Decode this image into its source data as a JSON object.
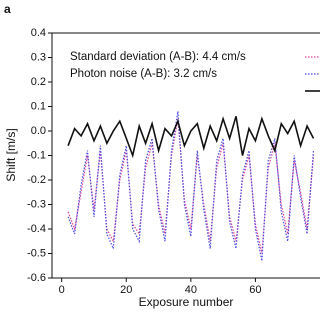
{
  "chart_data": {
    "type": "line",
    "panel_label": "a",
    "xlabel": "Exposure number",
    "ylabel": "Shift [m/s]",
    "annotations": [
      "Standard deviation (A-B): 4.4 cm/s",
      "Photon noise (A-B): 3.2 cm/s"
    ],
    "xlim": [
      -3,
      80
    ],
    "ylim": [
      -0.6,
      0.4
    ],
    "xticks": [
      0,
      20,
      40,
      60
    ],
    "yticks": [
      0.4,
      0.3,
      0.2,
      0.1,
      {
        "value": 0,
        "label": "0.0"
      },
      -0.1,
      -0.2,
      -0.3,
      -0.4,
      -0.5,
      -0.6
    ],
    "x": [
      2,
      4,
      6,
      8,
      10,
      12,
      14,
      16,
      18,
      20,
      22,
      24,
      26,
      28,
      30,
      32,
      34,
      36,
      38,
      40,
      42,
      44,
      46,
      48,
      50,
      52,
      54,
      56,
      58,
      60,
      62,
      64,
      66,
      68,
      70,
      72,
      74,
      76,
      78
    ],
    "series": [
      {
        "color": "#e0409a",
        "style": "dotted",
        "values": [
          -0.33,
          -0.4,
          -0.25,
          -0.1,
          -0.32,
          -0.08,
          -0.4,
          -0.45,
          -0.2,
          -0.08,
          -0.38,
          -0.42,
          -0.15,
          -0.05,
          -0.3,
          -0.42,
          -0.1,
          0.05,
          -0.28,
          -0.4,
          -0.1,
          -0.3,
          -0.45,
          -0.15,
          -0.05,
          -0.35,
          -0.45,
          -0.2,
          -0.1,
          -0.38,
          -0.5,
          -0.15,
          -0.05,
          -0.3,
          -0.42,
          -0.12,
          -0.25,
          -0.4,
          -0.1
        ]
      },
      {
        "color": "#4a4ae0",
        "style": "dotted",
        "values": [
          -0.35,
          -0.42,
          -0.22,
          -0.08,
          -0.35,
          -0.06,
          -0.42,
          -0.48,
          -0.18,
          -0.06,
          -0.4,
          -0.45,
          -0.12,
          -0.03,
          -0.32,
          -0.45,
          -0.08,
          0.08,
          -0.3,
          -0.43,
          -0.08,
          -0.32,
          -0.48,
          -0.12,
          -0.03,
          -0.37,
          -0.48,
          -0.18,
          -0.08,
          -0.4,
          -0.53,
          -0.12,
          -0.03,
          -0.33,
          -0.45,
          -0.1,
          -0.27,
          -0.42,
          -0.08
        ]
      },
      {
        "color": "#111111",
        "style": "solid",
        "values": [
          -0.06,
          0.01,
          -0.02,
          0.03,
          -0.04,
          0.02,
          -0.05,
          0.0,
          0.04,
          -0.03,
          -0.1,
          0.02,
          -0.05,
          0.03,
          -0.08,
          0.01,
          -0.02,
          0.04,
          -0.06,
          0.0,
          0.03,
          -0.07,
          0.02,
          -0.04,
          0.05,
          -0.03,
          0.06,
          -0.1,
          0.01,
          -0.04,
          0.05,
          -0.02,
          -0.08,
          0.03,
          -0.01,
          0.04,
          -0.06,
          0.02,
          -0.03
        ]
      }
    ]
  }
}
